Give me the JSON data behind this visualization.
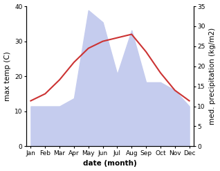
{
  "months": [
    "Jan",
    "Feb",
    "Mar",
    "Apr",
    "May",
    "Jun",
    "Jul",
    "Aug",
    "Sep",
    "Oct",
    "Nov",
    "Dec"
  ],
  "temp": [
    13,
    15,
    19,
    24,
    28,
    30,
    31,
    32,
    27,
    21,
    16,
    13
  ],
  "precip": [
    10,
    10,
    10,
    12,
    34,
    31,
    18,
    29,
    16,
    16,
    14,
    10
  ],
  "temp_color": "#cc3333",
  "precip_fill_color": "#c5ccee",
  "temp_ylim": [
    0,
    40
  ],
  "precip_ylim": [
    0,
    35
  ],
  "xlabel": "date (month)",
  "ylabel_left": "max temp (C)",
  "ylabel_right": "med. precipitation (kg/m2)",
  "label_fontsize": 7.5,
  "tick_fontsize": 6.5
}
